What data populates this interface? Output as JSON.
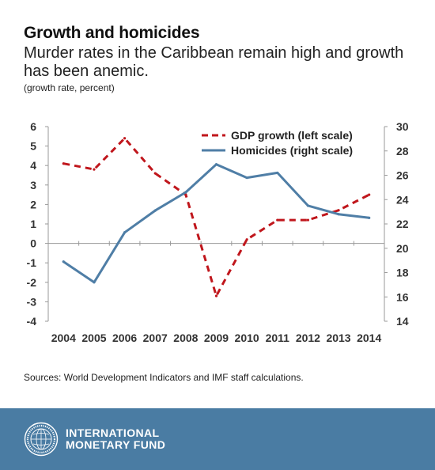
{
  "header": {
    "title": "Growth and homicides",
    "subtitle": "Murder rates in the Caribbean remain high and growth has been anemic.",
    "units": "(growth rate, percent)"
  },
  "source": "Sources: World Development Indicators and IMF staff calculations.",
  "footer": {
    "brand_line1": "INTERNATIONAL",
    "brand_line2": "MONETARY FUND",
    "seal_text": "INTERNATIONAL MONETARY FUND"
  },
  "colors": {
    "gdp": "#c0161c",
    "homicides": "#4f7ea6",
    "footer": "#4a7ca3"
  },
  "chart_data": {
    "type": "line",
    "x": [
      "2004",
      "2005",
      "2006",
      "2007",
      "2008",
      "2009",
      "2010",
      "2011",
      "2012",
      "2013",
      "2014"
    ],
    "series": [
      {
        "name": "GDP growth (left scale)",
        "axis": "left",
        "style": "dashed",
        "values": [
          4.1,
          3.8,
          5.4,
          3.6,
          2.5,
          -2.7,
          0.2,
          1.2,
          1.2,
          1.7,
          2.5
        ]
      },
      {
        "name": "Homicides (right scale)",
        "axis": "right",
        "style": "solid",
        "values": [
          18.9,
          17.2,
          21.3,
          23.1,
          24.6,
          26.9,
          25.8,
          26.2,
          23.5,
          22.8,
          22.5
        ]
      }
    ],
    "ylim_left": [
      -4,
      6
    ],
    "yticks_left": [
      "6",
      "5",
      "4",
      "3",
      "2",
      "1",
      "0",
      "-1",
      "-2",
      "-3",
      "-4"
    ],
    "ylim_right": [
      14,
      30
    ],
    "yticks_right": [
      "30",
      "28",
      "26",
      "24",
      "22",
      "20",
      "18",
      "16",
      "14"
    ],
    "legend_position": "top-right",
    "grid": false
  }
}
